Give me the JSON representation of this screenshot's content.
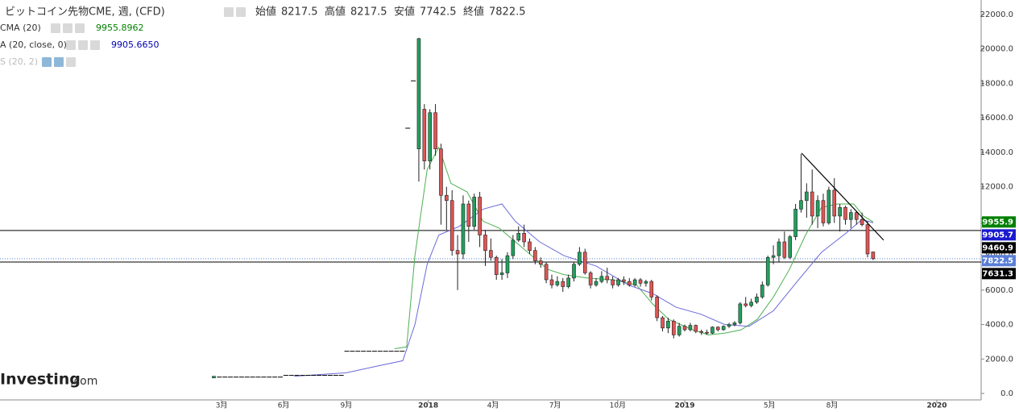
{
  "chart_data": {
    "type": "candlestick",
    "title": "ビットコイン先物CME, 週, (CFD)",
    "ohlc_names": [
      "始値",
      "高値",
      "安値",
      "終値"
    ],
    "indicators": [
      {
        "name": "CMA (20)",
        "value": 9955.8962,
        "color": "#008000"
      },
      {
        "name": "A (20, close, 0)",
        "value": {
          "value": 9905.665,
          "label": "9905.6650"
        },
        "color": "#0000b0"
      },
      {
        "name": "S (20, 2)",
        "color": "#bbbbbb"
      }
    ],
    "logo": "Investing",
    "logo_suffix": ".com",
    "up_color": "#22a05e",
    "down_color": "#e05555",
    "xlim": [
      -75.6,
      101.5
    ],
    "ylim": [
      0,
      22000
    ],
    "xticks": [
      {
        "value": -35.6,
        "label": "3月"
      },
      {
        "value": -24.4,
        "label": "6月"
      },
      {
        "value": -13.1,
        "label": "9月"
      },
      {
        "value": 1.7,
        "label": "2018"
      },
      {
        "value": 13.4,
        "label": "4月"
      },
      {
        "value": 24.6,
        "label": "7月"
      },
      {
        "value": 35.9,
        "label": "10月"
      },
      {
        "value": 48,
        "label": "2019"
      },
      {
        "value": 63.3,
        "label": "5月"
      },
      {
        "value": 74.6,
        "label": "8月"
      },
      {
        "value": 93.5,
        "label": "2020"
      }
    ],
    "yticks": [
      {
        "value": 0,
        "label": "0.0"
      },
      {
        "value": 2000,
        "label": "2000.0"
      },
      {
        "value": 4000,
        "label": "4000.0"
      },
      {
        "value": 6000,
        "label": "6000.0"
      },
      {
        "value": 8000,
        "label": "8000.0"
      },
      {
        "value": 10000,
        "label": "10000.0"
      },
      {
        "value": 12000,
        "label": "12000.0"
      },
      {
        "value": 14000,
        "label": "14000.0"
      },
      {
        "value": 16000,
        "label": "16000.0"
      },
      {
        "value": 18000,
        "label": "18000.0"
      },
      {
        "value": 20000,
        "label": "20000.0"
      },
      {
        "value": 22000,
        "label": "22000.0"
      }
    ],
    "x": [
      -37,
      -36,
      -35,
      -34,
      -33,
      -32,
      -31,
      -30,
      -29,
      -28,
      -27,
      -26,
      -25,
      -24,
      -23,
      -22,
      -21,
      -20,
      -19,
      -18,
      -17,
      -16,
      -15,
      -14,
      -13,
      -12,
      -11,
      -10,
      -9,
      -8,
      -7,
      -6,
      -5,
      -4,
      -3,
      -2,
      -1,
      0,
      1,
      2,
      3,
      4,
      5,
      6,
      7,
      8,
      9,
      10,
      11,
      12,
      13,
      14,
      15,
      16,
      17,
      18,
      19,
      20,
      21,
      22,
      23,
      24,
      25,
      26,
      27,
      28,
      29,
      30,
      31,
      32,
      33,
      34,
      35,
      36,
      37,
      38,
      39,
      40,
      41,
      42,
      43,
      44,
      45,
      46,
      47,
      48,
      49,
      50,
      51,
      52,
      53,
      54,
      55,
      56,
      57,
      58,
      59,
      60,
      61,
      62,
      63,
      64,
      65,
      66,
      67,
      68,
      69,
      70,
      71,
      72,
      73,
      74,
      75,
      76,
      77,
      78,
      79,
      80,
      81,
      82
    ],
    "ohlc": [
      [
        900,
        1000,
        900,
        1000
      ],
      [
        950,
        950,
        950,
        950
      ],
      [
        950,
        950,
        950,
        950
      ],
      [
        950,
        950,
        950,
        950
      ],
      [
        950,
        950,
        950,
        950
      ],
      [
        950,
        950,
        950,
        950
      ],
      [
        950,
        950,
        950,
        950
      ],
      [
        950,
        950,
        950,
        950
      ],
      [
        950,
        950,
        950,
        950
      ],
      [
        950,
        950,
        950,
        950
      ],
      [
        950,
        950,
        950,
        950
      ],
      [
        950,
        950,
        950,
        950
      ],
      [
        950,
        950,
        950,
        950
      ],
      [
        1050,
        1050,
        1050,
        1050
      ],
      [
        1050,
        1050,
        1050,
        1050
      ],
      [
        1050,
        1050,
        1050,
        1050
      ],
      [
        1050,
        1050,
        1050,
        1050
      ],
      [
        1050,
        1050,
        1050,
        1050
      ],
      [
        1050,
        1050,
        1050,
        1050
      ],
      [
        1050,
        1050,
        1050,
        1050
      ],
      [
        1050,
        1050,
        1050,
        1050
      ],
      [
        1050,
        1050,
        1050,
        1050
      ],
      [
        1050,
        1050,
        1050,
        1050
      ],
      [
        1050,
        1050,
        1050,
        1050
      ],
      [
        2450,
        2450,
        2450,
        2450
      ],
      [
        2450,
        2450,
        2450,
        2450
      ],
      [
        2450,
        2450,
        2450,
        2450
      ],
      [
        2450,
        2450,
        2450,
        2450
      ],
      [
        2450,
        2450,
        2450,
        2450
      ],
      [
        2450,
        2450,
        2450,
        2450
      ],
      [
        2450,
        2450,
        2450,
        2450
      ],
      [
        2450,
        2450,
        2450,
        2450
      ],
      [
        2450,
        2450,
        2450,
        2450
      ],
      [
        2450,
        2450,
        2450,
        2450
      ],
      [
        2450,
        2450,
        2450,
        2450
      ],
      [
        15400,
        15400,
        15400,
        15400
      ],
      [
        18150,
        18150,
        18150,
        18150
      ],
      [
        14200,
        20650,
        12300,
        20600
      ],
      [
        16500,
        16800,
        13000,
        13500
      ],
      [
        13500,
        16500,
        13000,
        16300
      ],
      [
        16300,
        16800,
        13800,
        14200
      ],
      [
        14200,
        14500,
        9800,
        11500
      ],
      [
        11500,
        12000,
        9500,
        11200
      ],
      [
        11200,
        11800,
        8000,
        8300
      ],
      [
        8300,
        9200,
        6000,
        8100
      ],
      [
        8100,
        11500,
        7800,
        11000
      ],
      [
        11000,
        11200,
        8800,
        9700
      ],
      [
        9700,
        11600,
        9500,
        11400
      ],
      [
        11400,
        11700,
        8500,
        9200
      ],
      [
        9200,
        9500,
        7400,
        8300
      ],
      [
        8300,
        9000,
        7700,
        7900
      ],
      [
        7900,
        8000,
        6600,
        6900
      ],
      [
        6900,
        7800,
        6600,
        7000
      ],
      [
        7000,
        8200,
        6700,
        8000
      ],
      [
        8000,
        9200,
        7800,
        8900
      ],
      [
        8900,
        9700,
        8800,
        9300
      ],
      [
        9300,
        9800,
        8500,
        8800
      ],
      [
        8800,
        9000,
        8100,
        8300
      ],
      [
        8300,
        8500,
        7500,
        7700
      ],
      [
        7700,
        7900,
        7300,
        7500
      ],
      [
        7500,
        7600,
        6400,
        6600
      ],
      [
        6600,
        6900,
        6100,
        6300
      ],
      [
        6300,
        6800,
        6200,
        6500
      ],
      [
        6500,
        6700,
        5900,
        6200
      ],
      [
        6200,
        6900,
        6100,
        6700
      ],
      [
        6700,
        7600,
        6500,
        7500
      ],
      [
        7500,
        8500,
        7400,
        8200
      ],
      [
        8200,
        8400,
        6900,
        7000
      ],
      [
        7000,
        7100,
        6100,
        6300
      ],
      [
        6300,
        6700,
        6200,
        6500
      ],
      [
        6500,
        7100,
        6400,
        6800
      ],
      [
        6800,
        7300,
        6400,
        6600
      ],
      [
        6600,
        6800,
        6100,
        6300
      ],
      [
        6300,
        6700,
        6200,
        6600
      ],
      [
        6600,
        6800,
        6300,
        6500
      ],
      [
        6500,
        6700,
        6200,
        6300
      ],
      [
        6300,
        6700,
        6200,
        6600
      ],
      [
        6600,
        6700,
        6200,
        6400
      ],
      [
        6400,
        6600,
        6200,
        6500
      ],
      [
        6500,
        6600,
        5400,
        5600
      ],
      [
        5600,
        5700,
        4200,
        4400
      ],
      [
        4400,
        4500,
        3600,
        3800
      ],
      [
        3800,
        4400,
        3500,
        4200
      ],
      [
        4200,
        4300,
        3200,
        3400
      ],
      [
        3400,
        4100,
        3300,
        3900
      ],
      [
        3900,
        4000,
        3600,
        3700
      ],
      [
        3700,
        4100,
        3600,
        3950
      ],
      [
        3950,
        4000,
        3500,
        3600
      ],
      [
        3600,
        3700,
        3400,
        3550
      ],
      [
        3550,
        3700,
        3400,
        3500
      ],
      [
        3500,
        3900,
        3450,
        3850
      ],
      [
        3850,
        3900,
        3600,
        3700
      ],
      [
        3700,
        3950,
        3650,
        3900
      ],
      [
        3900,
        4100,
        3800,
        4000
      ],
      [
        4000,
        4200,
        3900,
        4100
      ],
      [
        4100,
        5300,
        4000,
        5200
      ],
      [
        5200,
        5600,
        5000,
        5100
      ],
      [
        5100,
        5500,
        5000,
        5300
      ],
      [
        5300,
        5800,
        5200,
        5600
      ],
      [
        5600,
        6500,
        5500,
        6300
      ],
      [
        6300,
        8000,
        6200,
        7900
      ],
      [
        7900,
        8600,
        7500,
        8000
      ],
      [
        8000,
        9000,
        7600,
        8800
      ],
      [
        8800,
        9400,
        7800,
        7900
      ],
      [
        7900,
        9200,
        7800,
        9100
      ],
      [
        9100,
        11000,
        8900,
        10700
      ],
      [
        10700,
        13900,
        10500,
        11200
      ],
      [
        11200,
        12200,
        10200,
        11700
      ],
      [
        11700,
        13000,
        9800,
        10300
      ],
      [
        10300,
        11500,
        9600,
        11200
      ],
      [
        11200,
        11600,
        9700,
        9900
      ],
      [
        9900,
        12000,
        9800,
        11800
      ],
      [
        11800,
        12500,
        9900,
        10300
      ],
      [
        10300,
        11000,
        9400,
        10800
      ],
      [
        10800,
        10900,
        9800,
        10100
      ],
      [
        10100,
        10700,
        9600,
        10500
      ],
      [
        10500,
        10600,
        9800,
        10100
      ],
      [
        10100,
        10500,
        9700,
        9800
      ],
      [
        9800,
        10000,
        7900,
        8100
      ],
      [
        8217.5,
        8217.5,
        7742.5,
        7822.5
      ]
    ],
    "series": [
      {
        "name": "EMA",
        "color": "#4caf50",
        "x": [
          -4.4,
          -2.2,
          -0.7,
          1.5,
          3.6,
          5.8,
          8.7,
          11.6,
          14.5,
          18.9,
          23.3,
          26.2,
          30.5,
          34.9,
          39.3,
          42.2,
          45.1,
          49.4,
          52.3,
          55.2,
          58.2,
          61.1,
          64,
          66.9,
          69.8,
          72.7,
          75.6,
          78.5,
          80.3,
          82
        ],
        "values": [
          2600,
          2700,
          8000,
          13000,
          14300,
          12200,
          11700,
          10000,
          9600,
          8400,
          7200,
          6900,
          6700,
          6600,
          6300,
          5200,
          4300,
          3700,
          3400,
          3500,
          3700,
          4300,
          5600,
          7200,
          9200,
          10800,
          11000,
          11000,
          10300,
          9955.9
        ]
      },
      {
        "name": "SMA",
        "color": "#6a6ad8",
        "x": [
          -22.5,
          -13.1,
          -7.3,
          -2.9,
          -0.7,
          1.5,
          3.6,
          7.3,
          11.6,
          15,
          17.4,
          21.8,
          26.2,
          32,
          37.8,
          42.2,
          46.5,
          50.9,
          55.2,
          59.6,
          64,
          68.3,
          72.7,
          77.1,
          80,
          82
        ],
        "values": [
          1000,
          1200,
          1600,
          1900,
          4000,
          7500,
          9200,
          9700,
          10700,
          11000,
          10000,
          8800,
          8000,
          7400,
          6300,
          5800,
          5000,
          4600,
          4000,
          3900,
          4800,
          6500,
          8200,
          9300,
          10100,
          9905.7
        ]
      }
    ],
    "trendline": {
      "x": [
        69.1,
        83.9
      ],
      "values": [
        13950,
        8900
      ]
    },
    "hlines": [
      9460.9,
      7631.3
    ],
    "dotted_line": 7822.5,
    "price_labels": [
      9955.9,
      9905.7,
      9460.9,
      7822.5,
      7631.3
    ],
    "price_label_colors": [
      "#008000",
      "#1a1ad0",
      "#000000",
      "#5a7fd8",
      "#000000"
    ]
  }
}
